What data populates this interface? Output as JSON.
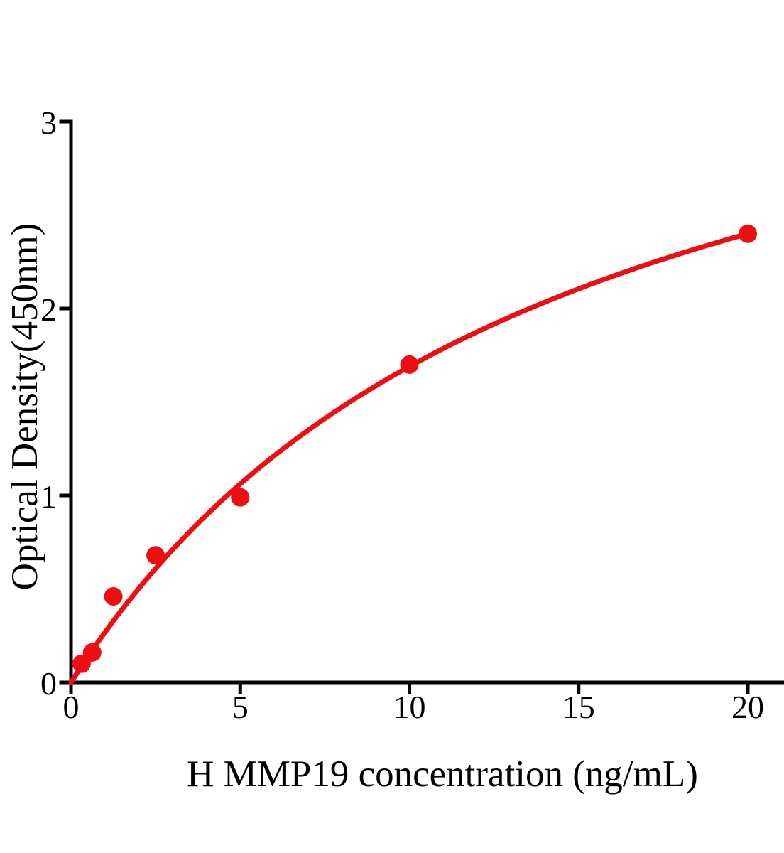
{
  "chart_data": {
    "type": "scatter",
    "title": "",
    "xlabel": "H MMP19 concentration (ng/mL)",
    "ylabel": "Optical Density(450nm)",
    "series": [
      {
        "x": [
          0.3125,
          0.625,
          1.25,
          2.5,
          5,
          10,
          20
        ],
        "y": [
          0.1,
          0.16,
          0.46,
          0.68,
          0.99,
          1.7,
          2.4
        ]
      }
    ],
    "xlim": [
      0,
      20
    ],
    "ylim": [
      0,
      3
    ],
    "x_ticks": [
      0,
      5,
      10,
      15,
      20
    ],
    "y_ticks": [
      0,
      1,
      2,
      3
    ],
    "grid": false,
    "legend": "none",
    "marker": "circle",
    "fit_curve": {
      "type": "michaelis_menten",
      "vmax": 4.14,
      "km": 14.5,
      "x_start": 0,
      "x_end": 20
    },
    "colors": {
      "series": "#ee0d11",
      "axis": "#000000",
      "background": "#ffffff"
    }
  }
}
